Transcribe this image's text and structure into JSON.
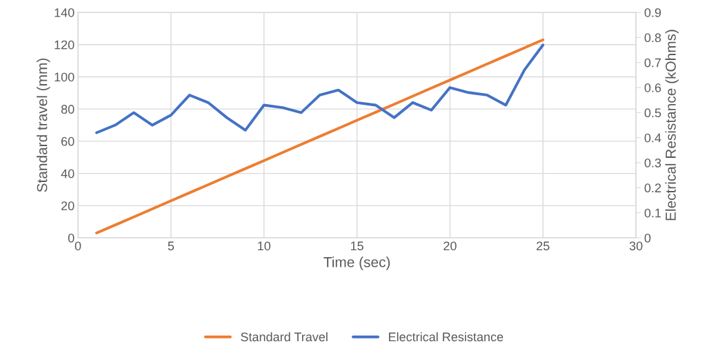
{
  "chart_data": {
    "type": "line",
    "xlabel": "Time (sec)",
    "ylabel": "Standard travel (mm)",
    "y2label": "Electrical Resistance (kOhms)",
    "x": [
      1,
      2,
      3,
      4,
      5,
      6,
      7,
      8,
      9,
      10,
      11,
      12,
      13,
      14,
      15,
      16,
      17,
      18,
      19,
      20,
      21,
      22,
      23,
      24,
      25
    ],
    "series": [
      {
        "name": "Standard Travel",
        "color": "#ed7d31",
        "values": [
          3,
          8,
          13,
          18,
          23,
          28,
          33,
          38,
          43,
          48,
          53,
          58,
          63,
          68,
          73,
          78,
          83,
          88,
          93,
          98,
          103,
          108,
          113,
          118,
          123
        ]
      },
      {
        "name": "Electrical Resistance",
        "color": "#4472c4",
        "axis": "y2",
        "values": [
          0.42,
          0.45,
          0.5,
          0.45,
          0.49,
          0.57,
          0.54,
          0.48,
          0.43,
          0.53,
          0.52,
          0.5,
          0.57,
          0.59,
          0.54,
          0.53,
          0.48,
          0.54,
          0.51,
          0.6,
          0.58,
          0.57,
          0.53,
          0.67,
          0.77
        ]
      }
    ],
    "xlim": [
      0,
      30
    ],
    "xticks": [
      0,
      5,
      10,
      15,
      20,
      25,
      30
    ],
    "ylim": [
      0,
      140
    ],
    "yticks": [
      0,
      20,
      40,
      60,
      80,
      100,
      120,
      140
    ],
    "y2lim": [
      0,
      0.9
    ],
    "y2ticks": [
      0,
      0.1,
      0.2,
      0.3,
      0.4,
      0.5,
      0.6,
      0.7,
      0.8,
      0.9
    ],
    "grid": true,
    "legend": "bottom",
    "marker": "none",
    "line_style": "solid"
  }
}
